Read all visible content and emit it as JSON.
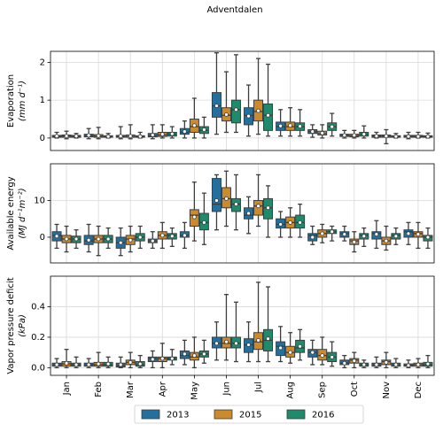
{
  "chart_data": [
    {
      "type": "box",
      "title": "Adventdalen",
      "ylabel": [
        "Evaporation",
        "(mm d⁻¹)"
      ],
      "ylim": [
        -0.33,
        2.29
      ],
      "yticks": [
        0,
        1,
        2
      ],
      "grid": true,
      "series": [
        {
          "values": [
            [
              0,
              0.02,
              0.04,
              0.07,
              0.15,
              0.05
            ],
            [
              -0.02,
              0.03,
              0.06,
              0.1,
              0.25,
              0.07
            ],
            [
              -0.02,
              0.02,
              0.04,
              0.07,
              0.3,
              0.05
            ],
            [
              -0.02,
              0.03,
              0.06,
              0.12,
              0.35,
              0.08
            ],
            [
              0,
              0.1,
              0.15,
              0.25,
              0.45,
              0.17
            ],
            [
              0.1,
              0.55,
              0.85,
              1.2,
              2.25,
              0.85
            ],
            [
              0.05,
              0.35,
              0.6,
              0.8,
              1.4,
              0.58
            ],
            [
              0.05,
              0.2,
              0.3,
              0.42,
              0.75,
              0.32
            ],
            [
              0.02,
              0.12,
              0.17,
              0.22,
              0.35,
              0.17
            ],
            [
              0,
              0.04,
              0.07,
              0.1,
              0.2,
              0.07
            ],
            [
              0,
              0.02,
              0.05,
              0.08,
              0.15,
              0.05
            ],
            [
              -0.02,
              0.02,
              0.04,
              0.07,
              0.15,
              0.04
            ]
          ]
        },
        {
          "values": [
            [
              -0.02,
              0.02,
              0.05,
              0.08,
              0.18,
              0.05
            ],
            [
              -0.02,
              0.02,
              0.05,
              0.09,
              0.28,
              0.06
            ],
            [
              -0.02,
              0.02,
              0.04,
              0.08,
              0.35,
              0.05
            ],
            [
              0,
              0.04,
              0.08,
              0.15,
              0.35,
              0.1
            ],
            [
              0,
              0.15,
              0.3,
              0.5,
              1.05,
              0.33
            ],
            [
              0.15,
              0.45,
              0.6,
              0.8,
              1.75,
              0.62
            ],
            [
              0.1,
              0.45,
              0.7,
              1.0,
              2.1,
              0.72
            ],
            [
              0.05,
              0.2,
              0.3,
              0.42,
              0.8,
              0.33
            ],
            [
              0,
              0.08,
              0.12,
              0.18,
              0.35,
              0.13
            ],
            [
              0,
              0.03,
              0.06,
              0.1,
              0.2,
              0.07
            ],
            [
              -0.15,
              0.02,
              0.05,
              0.08,
              0.22,
              0.05
            ],
            [
              0,
              0.02,
              0.04,
              0.07,
              0.15,
              0.04
            ]
          ]
        },
        {
          "values": [
            [
              0,
              0.02,
              0.04,
              0.07,
              0.12,
              0.05
            ],
            [
              0,
              0.02,
              0.03,
              0.06,
              0.12,
              0.04
            ],
            [
              0,
              0.02,
              0.04,
              0.06,
              0.15,
              0.04
            ],
            [
              0,
              0.05,
              0.1,
              0.15,
              0.3,
              0.11
            ],
            [
              0,
              0.12,
              0.2,
              0.3,
              0.55,
              0.22
            ],
            [
              0.15,
              0.4,
              0.75,
              1.0,
              2.2,
              0.75
            ],
            [
              0.05,
              0.2,
              0.6,
              0.9,
              1.95,
              0.6
            ],
            [
              0.05,
              0.2,
              0.3,
              0.4,
              0.75,
              0.31
            ],
            [
              0.05,
              0.2,
              0.3,
              0.4,
              0.65,
              0.3
            ],
            [
              0,
              0.05,
              0.1,
              0.15,
              0.32,
              0.1
            ],
            [
              0,
              0.02,
              0.04,
              0.06,
              0.12,
              0.04
            ],
            [
              0,
              0.02,
              0.04,
              0.06,
              0.13,
              0.04
            ]
          ]
        }
      ]
    },
    {
      "type": "box",
      "ylabel": [
        "Available energy",
        "(MJ d⁻¹m⁻²)"
      ],
      "ylim": [
        -7,
        20
      ],
      "yticks": [
        0,
        10
      ],
      "grid": true,
      "series": [
        {
          "values": [
            [
              -3,
              -1,
              0.5,
              1.5,
              3.5,
              0.3
            ],
            [
              -4,
              -2,
              -1,
              0.5,
              3.5,
              -0.8
            ],
            [
              -5,
              -3,
              -1.5,
              0,
              2.5,
              -1.5
            ],
            [
              -3,
              -1.5,
              -1,
              -0.5,
              1.5,
              -1
            ],
            [
              -3,
              0,
              0.5,
              1.5,
              4,
              0.5
            ],
            [
              2,
              7,
              9,
              16,
              17,
              10
            ],
            [
              1,
              5,
              6,
              8,
              11,
              6.5
            ],
            [
              0,
              2.5,
              3.5,
              5,
              7,
              3.5
            ],
            [
              -2,
              -1,
              0.5,
              1,
              3,
              0
            ],
            [
              -1,
              0,
              1,
              1.5,
              3,
              0.8
            ],
            [
              -3,
              -0.5,
              1,
              1.5,
              4.5,
              0.8
            ],
            [
              -2,
              0,
              1.5,
              2,
              4,
              1
            ]
          ]
        },
        {
          "values": [
            [
              -4,
              -1.5,
              -0.5,
              0.5,
              3,
              -0.5
            ],
            [
              -5,
              -1.5,
              -0.5,
              0.5,
              3,
              -0.5
            ],
            [
              -4,
              -2,
              -0.5,
              0.5,
              3,
              -0.8
            ],
            [
              -3,
              -0.5,
              0.5,
              1.5,
              4,
              0.5
            ],
            [
              -1,
              3,
              6,
              7.5,
              15,
              5.5
            ],
            [
              3,
              8,
              10.5,
              13.5,
              18,
              10.5
            ],
            [
              3,
              6,
              8.5,
              10,
              17,
              8.5
            ],
            [
              0,
              2.5,
              4,
              5.5,
              8,
              4
            ],
            [
              -1.5,
              0,
              1,
              2,
              3.5,
              1
            ],
            [
              -4,
              -2,
              -1,
              -0.5,
              1.5,
              -1.3
            ],
            [
              -3.5,
              -2,
              -1,
              0,
              3,
              -1
            ],
            [
              -3,
              0,
              1,
              1.5,
              4,
              0.8
            ]
          ]
        },
        {
          "values": [
            [
              -3,
              -1.5,
              -0.5,
              0.3,
              2,
              -0.5
            ],
            [
              -3,
              -1.5,
              -0.5,
              0.5,
              2.5,
              -0.5
            ],
            [
              -3,
              -1,
              0,
              1,
              3,
              0
            ],
            [
              -2.5,
              -0.5,
              0.5,
              1,
              2.5,
              0.3
            ],
            [
              -2,
              2,
              4,
              6.5,
              12,
              4
            ],
            [
              2,
              7,
              9,
              10.5,
              17,
              9
            ],
            [
              0,
              5,
              8,
              10.5,
              14,
              8
            ],
            [
              0,
              2.5,
              4,
              6,
              9,
              4
            ],
            [
              -1,
              1,
              1.5,
              2,
              3,
              1.5
            ],
            [
              -2.5,
              -0.5,
              0.5,
              1,
              2.5,
              0.3
            ],
            [
              -2,
              -0.5,
              0.5,
              1,
              2.5,
              0.3
            ],
            [
              -3,
              -1,
              0,
              0.5,
              2.5,
              0
            ]
          ]
        }
      ]
    },
    {
      "type": "box",
      "ylabel": [
        "Vapor pressure deficit",
        "(kPa)"
      ],
      "ylim": [
        -0.05,
        0.6
      ],
      "yticks": [
        {
          "value": 0,
          "label": "0.0"
        },
        0.2,
        0.4
      ],
      "grid": true,
      "categories": [
        "Jan",
        "Feb",
        "Mar",
        "Apr",
        "May",
        "Jun",
        "Jul",
        "Aug",
        "Sep",
        "Oct",
        "Nov",
        "Dec"
      ],
      "legend": "bottom",
      "series": [
        {
          "name": "2013",
          "color": "#23709f",
          "values": [
            [
              0,
              0.01,
              0.02,
              0.03,
              0.06,
              0.02
            ],
            [
              0,
              0.01,
              0.02,
              0.03,
              0.06,
              0.02
            ],
            [
              0,
              0.005,
              0.015,
              0.03,
              0.07,
              0.02
            ],
            [
              0,
              0.04,
              0.06,
              0.07,
              0.11,
              0.055
            ],
            [
              0.02,
              0.06,
              0.08,
              0.11,
              0.18,
              0.09
            ],
            [
              0.05,
              0.13,
              0.16,
              0.2,
              0.3,
              0.16
            ],
            [
              0.04,
              0.1,
              0.15,
              0.19,
              0.3,
              0.15
            ],
            [
              0.04,
              0.08,
              0.14,
              0.17,
              0.27,
              0.13
            ],
            [
              0.02,
              0.07,
              0.1,
              0.12,
              0.18,
              0.1
            ],
            [
              0,
              0.02,
              0.03,
              0.05,
              0.08,
              0.03
            ],
            [
              0,
              0.01,
              0.02,
              0.03,
              0.07,
              0.02
            ],
            [
              0,
              0.01,
              0.015,
              0.025,
              0.05,
              0.015
            ]
          ]
        },
        {
          "name": "2015",
          "color": "#cc8a2a",
          "values": [
            [
              0,
              0.01,
              0.025,
              0.04,
              0.12,
              0.03
            ],
            [
              0,
              0.01,
              0.02,
              0.035,
              0.1,
              0.025
            ],
            [
              0,
              0.02,
              0.035,
              0.05,
              0.1,
              0.035
            ],
            [
              0,
              0.04,
              0.06,
              0.07,
              0.16,
              0.06
            ],
            [
              0,
              0.05,
              0.07,
              0.1,
              0.2,
              0.08
            ],
            [
              0.05,
              0.13,
              0.16,
              0.2,
              0.48,
              0.17
            ],
            [
              0.04,
              0.12,
              0.17,
              0.23,
              0.56,
              0.18
            ],
            [
              0.03,
              0.07,
              0.1,
              0.14,
              0.23,
              0.1
            ],
            [
              0.02,
              0.05,
              0.08,
              0.12,
              0.2,
              0.08
            ],
            [
              0,
              0.03,
              0.05,
              0.06,
              0.1,
              0.045
            ],
            [
              0,
              0.02,
              0.04,
              0.05,
              0.1,
              0.035
            ],
            [
              0,
              0.01,
              0.02,
              0.03,
              0.06,
              0.02
            ]
          ]
        },
        {
          "name": "2016",
          "color": "#1f8a6c",
          "values": [
            [
              0,
              0.01,
              0.02,
              0.03,
              0.07,
              0.02
            ],
            [
              0,
              0.01,
              0.02,
              0.035,
              0.07,
              0.025
            ],
            [
              0,
              0.01,
              0.02,
              0.04,
              0.08,
              0.025
            ],
            [
              0.02,
              0.05,
              0.06,
              0.07,
              0.12,
              0.06
            ],
            [
              0.03,
              0.07,
              0.09,
              0.11,
              0.18,
              0.09
            ],
            [
              0.04,
              0.13,
              0.16,
              0.2,
              0.43,
              0.16
            ],
            [
              0.04,
              0.11,
              0.18,
              0.25,
              0.53,
              0.19
            ],
            [
              0.05,
              0.1,
              0.13,
              0.18,
              0.25,
              0.14
            ],
            [
              0.01,
              0.04,
              0.07,
              0.1,
              0.17,
              0.07
            ],
            [
              0,
              0.01,
              0.02,
              0.03,
              0.05,
              0.02
            ],
            [
              0,
              0.01,
              0.02,
              0.03,
              0.06,
              0.02
            ],
            [
              0,
              0.01,
              0.02,
              0.035,
              0.08,
              0.025
            ]
          ]
        }
      ]
    }
  ]
}
